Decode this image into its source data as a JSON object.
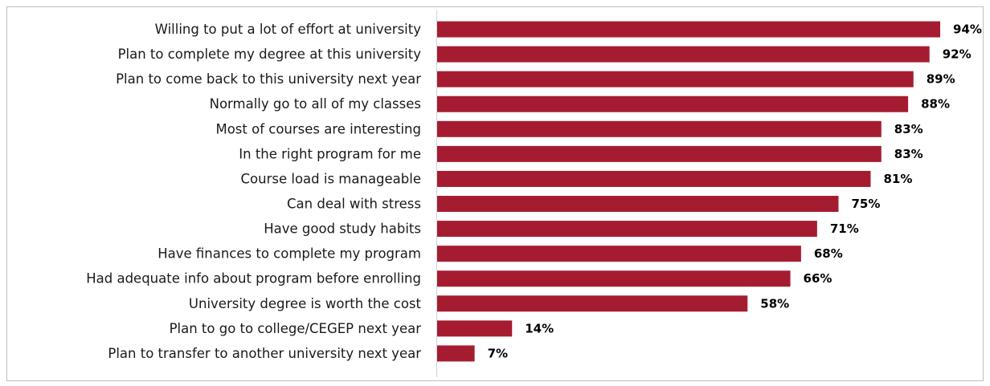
{
  "chart_data": {
    "type": "bar",
    "orientation": "horizontal",
    "title": "",
    "xlabel": "",
    "ylabel": "",
    "grid": false,
    "xlim": [
      0,
      100
    ],
    "value_suffix": "%",
    "bar_color": "#a51c30",
    "categories": [
      "Willing to put a lot of effort at university",
      "Plan to complete my degree at this university",
      "Plan to come back to this university next year",
      "Normally go to all of my classes",
      "Most of courses are interesting",
      "In the right program for me",
      "Course load is manageable",
      "Can deal with stress",
      "Have good study habits",
      "Have finances to complete my program",
      "Had adequate info about program before enrolling",
      "University degree is worth the cost",
      "Plan to go to college/CEGEP next year",
      "Plan to transfer to another university next year"
    ],
    "values": [
      94,
      92,
      89,
      88,
      83,
      83,
      81,
      75,
      71,
      68,
      66,
      58,
      14,
      7
    ],
    "value_labels": [
      "94%",
      "92%",
      "89%",
      "88%",
      "83%",
      "83%",
      "81%",
      "75%",
      "71%",
      "68%",
      "66%",
      "58%",
      "14%",
      "7%"
    ]
  }
}
